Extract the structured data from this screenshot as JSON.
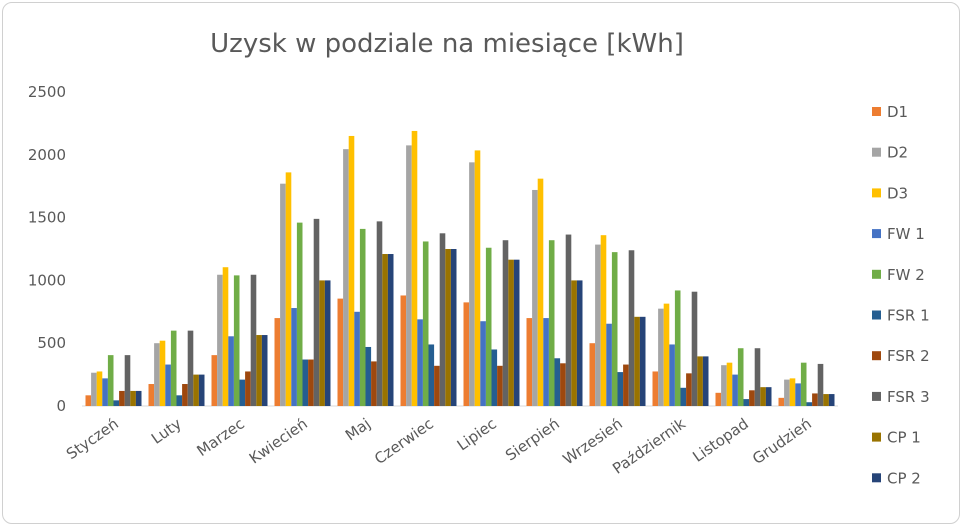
{
  "chart_data": {
    "type": "bar",
    "title": "Uzysk w podziale na miesiące [kWh]",
    "ylim": [
      0,
      2500
    ],
    "yticks": [
      0,
      500,
      1000,
      1500,
      2000,
      2500
    ],
    "grid": false,
    "legend_position": "right",
    "categories": [
      "Styczeń",
      "Luty",
      "Marzec",
      "Kwiecień",
      "Maj",
      "Czerwiec",
      "Lipiec",
      "Sierpień",
      "Wrzesień",
      "Październik",
      "Listopad",
      "Grudzień"
    ],
    "series": [
      {
        "name": "D1",
        "color": "#ED7D31",
        "values": [
          85,
          175,
          405,
          700,
          855,
          880,
          825,
          700,
          500,
          275,
          105,
          65
        ]
      },
      {
        "name": "D2",
        "color": "#A5A5A5",
        "values": [
          265,
          500,
          1045,
          1770,
          2045,
          2075,
          1940,
          1720,
          1285,
          775,
          325,
          210
        ]
      },
      {
        "name": "D3",
        "color": "#FFC000",
        "values": [
          275,
          520,
          1105,
          1860,
          2150,
          2190,
          2035,
          1810,
          1360,
          815,
          345,
          220
        ]
      },
      {
        "name": "FW 1",
        "color": "#4472C4",
        "values": [
          220,
          330,
          555,
          780,
          750,
          690,
          675,
          700,
          655,
          490,
          250,
          180
        ]
      },
      {
        "name": "FW 2",
        "color": "#70AD47",
        "values": [
          405,
          600,
          1040,
          1460,
          1410,
          1310,
          1260,
          1320,
          1225,
          920,
          460,
          345
        ]
      },
      {
        "name": "FSR 1",
        "color": "#255E91",
        "values": [
          45,
          85,
          210,
          370,
          470,
          490,
          450,
          380,
          270,
          145,
          55,
          30
        ]
      },
      {
        "name": "FSR 2",
        "color": "#9E480E",
        "values": [
          120,
          175,
          275,
          370,
          355,
          320,
          320,
          340,
          330,
          260,
          125,
          100
        ]
      },
      {
        "name": "FSR 3",
        "color": "#636363",
        "values": [
          405,
          600,
          1045,
          1490,
          1470,
          1375,
          1320,
          1365,
          1240,
          910,
          460,
          335
        ]
      },
      {
        "name": "CP 1",
        "color": "#997300",
        "values": [
          120,
          250,
          565,
          1000,
          1210,
          1250,
          1165,
          1000,
          710,
          395,
          150,
          95
        ]
      },
      {
        "name": "CP 2",
        "color": "#264478",
        "values": [
          120,
          250,
          565,
          1000,
          1210,
          1250,
          1165,
          1000,
          710,
          395,
          150,
          95
        ]
      }
    ]
  }
}
